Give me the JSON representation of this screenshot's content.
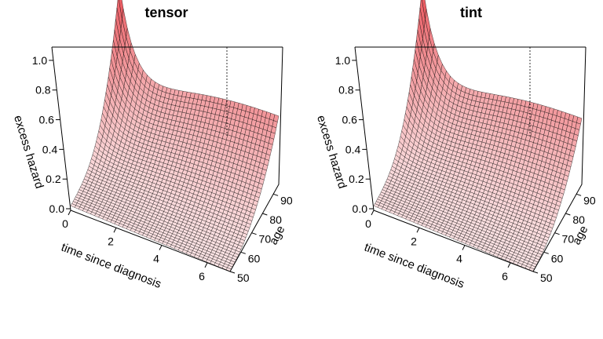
{
  "chart_data": [
    {
      "type": "surface",
      "title": "tensor",
      "xlabel": "time since diagnosis",
      "ylabel": "age",
      "zlabel": "excess hazard",
      "xlim": [
        0,
        7
      ],
      "ylim": [
        50,
        95
      ],
      "zlim": [
        0,
        1.1
      ],
      "x_ticks": [
        "0",
        "2",
        "4",
        "6"
      ],
      "y_ticks": [
        "50",
        "60",
        "70",
        "80",
        "90"
      ],
      "z_ticks": [
        "0.0",
        "0.2",
        "0.4",
        "0.6",
        "0.8",
        "1.0"
      ],
      "grid_x": 40,
      "grid_y": 40,
      "approx_surface": {
        "peak": {
          "time": 0,
          "age": 95,
          "excess_hazard": 1.05
        },
        "corner_values": [
          {
            "time": 0,
            "age": 50,
            "excess_hazard": 0.03
          },
          {
            "time": 7,
            "age": 50,
            "excess_hazard": 0.0
          },
          {
            "time": 7,
            "age": 95,
            "excess_hazard": 0.57
          }
        ]
      },
      "surface_color": "#e8474e",
      "grid": false
    },
    {
      "type": "surface",
      "title": "tint",
      "xlabel": "time since diagnosis",
      "ylabel": "age",
      "zlabel": "excess hazard",
      "xlim": [
        0,
        7
      ],
      "ylim": [
        50,
        95
      ],
      "zlim": [
        0,
        1.1
      ],
      "x_ticks": [
        "0",
        "2",
        "4",
        "6"
      ],
      "y_ticks": [
        "50",
        "60",
        "70",
        "80",
        "90"
      ],
      "z_ticks": [
        "0.0",
        "0.2",
        "0.4",
        "0.6",
        "0.8",
        "1.0"
      ],
      "grid_x": 40,
      "grid_y": 40,
      "approx_surface": {
        "peak": {
          "time": 0,
          "age": 95,
          "excess_hazard": 1.05
        },
        "corner_values": [
          {
            "time": 0,
            "age": 50,
            "excess_hazard": 0.03
          },
          {
            "time": 7,
            "age": 50,
            "excess_hazard": 0.0
          },
          {
            "time": 7,
            "age": 95,
            "excess_hazard": 0.55
          }
        ]
      },
      "surface_color": "#e8474e",
      "grid": false
    }
  ]
}
